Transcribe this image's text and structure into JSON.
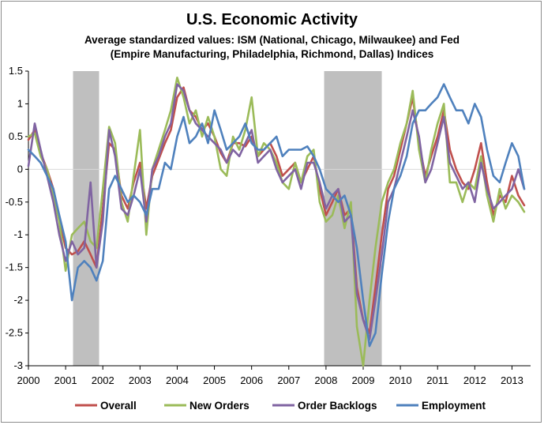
{
  "chart_data": {
    "type": "line",
    "title": "U.S. Economic Activity",
    "subtitle_line1": "Average standardized values: ISM (National, Chicago, Milwaukee) and Fed",
    "subtitle_line2": "(Empire Manufacturing, Philadelphia, Richmond, Dallas) Indices",
    "xlabel": "",
    "ylabel": "",
    "xlim": [
      2000,
      2013.5
    ],
    "ylim": [
      -3,
      1.5
    ],
    "x_ticks": [
      "2000",
      "2001",
      "2002",
      "2003",
      "2004",
      "2005",
      "2006",
      "2007",
      "2008",
      "2009",
      "2010",
      "2011",
      "2012",
      "2013"
    ],
    "y_ticks": [
      "1.5",
      "1",
      "0.5",
      "0",
      "-0.5",
      "-1",
      "-1.5",
      "-2",
      "-2.5",
      "-3"
    ],
    "recessions": [
      [
        2001.2,
        2001.9
      ],
      [
        2007.95,
        2009.5
      ]
    ],
    "recession_color": "#bfbfbf",
    "grid": "horizontal",
    "legend_position": "bottom",
    "series": [
      {
        "name": "Overall",
        "color": "#c0504d",
        "x": [
          2000.0,
          2000.17,
          2000.33,
          2000.5,
          2000.67,
          2000.83,
          2001.0,
          2001.17,
          2001.33,
          2001.5,
          2001.67,
          2001.83,
          2002.0,
          2002.17,
          2002.33,
          2002.5,
          2002.67,
          2002.83,
          2003.0,
          2003.17,
          2003.33,
          2003.5,
          2003.67,
          2003.83,
          2004.0,
          2004.17,
          2004.33,
          2004.5,
          2004.67,
          2004.83,
          2005.0,
          2005.17,
          2005.33,
          2005.5,
          2005.67,
          2005.83,
          2006.0,
          2006.17,
          2006.33,
          2006.5,
          2006.67,
          2006.83,
          2007.0,
          2007.17,
          2007.33,
          2007.5,
          2007.67,
          2007.83,
          2008.0,
          2008.17,
          2008.33,
          2008.5,
          2008.67,
          2008.83,
          2009.0,
          2009.17,
          2009.33,
          2009.5,
          2009.67,
          2009.83,
          2010.0,
          2010.17,
          2010.33,
          2010.5,
          2010.67,
          2010.83,
          2011.0,
          2011.17,
          2011.33,
          2011.5,
          2011.67,
          2011.83,
          2012.0,
          2012.17,
          2012.33,
          2012.5,
          2012.67,
          2012.83,
          2013.0,
          2013.17,
          2013.33
        ],
        "values": [
          0.45,
          0.6,
          0.25,
          0.0,
          -0.3,
          -0.75,
          -1.2,
          -1.3,
          -1.25,
          -1.1,
          -1.3,
          -1.5,
          -0.6,
          0.4,
          0.3,
          -0.4,
          -0.6,
          -0.2,
          0.1,
          -0.6,
          -0.1,
          0.15,
          0.4,
          0.6,
          1.1,
          1.25,
          0.9,
          0.8,
          0.6,
          0.7,
          0.5,
          0.25,
          0.1,
          0.4,
          0.4,
          0.35,
          0.5,
          0.2,
          0.3,
          0.4,
          0.2,
          -0.1,
          0.0,
          0.1,
          -0.2,
          0.0,
          0.2,
          -0.3,
          -0.7,
          -0.5,
          -0.3,
          -0.7,
          -0.6,
          -1.8,
          -2.3,
          -2.5,
          -1.8,
          -1.0,
          -0.3,
          -0.1,
          0.3,
          0.7,
          1.1,
          0.4,
          -0.1,
          0.2,
          0.5,
          0.9,
          0.3,
          0.0,
          -0.2,
          -0.3,
          0.0,
          0.4,
          -0.2,
          -0.7,
          -0.4,
          -0.5,
          -0.1,
          -0.4,
          -0.55
        ]
      },
      {
        "name": "New Orders",
        "color": "#9bbb59",
        "x": [
          2000.0,
          2000.17,
          2000.33,
          2000.5,
          2000.67,
          2000.83,
          2001.0,
          2001.17,
          2001.33,
          2001.5,
          2001.67,
          2001.83,
          2002.0,
          2002.17,
          2002.33,
          2002.5,
          2002.67,
          2002.83,
          2003.0,
          2003.17,
          2003.33,
          2003.5,
          2003.67,
          2003.83,
          2004.0,
          2004.17,
          2004.33,
          2004.5,
          2004.67,
          2004.83,
          2005.0,
          2005.17,
          2005.33,
          2005.5,
          2005.67,
          2005.83,
          2006.0,
          2006.17,
          2006.33,
          2006.5,
          2006.67,
          2006.83,
          2007.0,
          2007.17,
          2007.33,
          2007.5,
          2007.67,
          2007.83,
          2008.0,
          2008.17,
          2008.33,
          2008.5,
          2008.67,
          2008.83,
          2009.0,
          2009.17,
          2009.33,
          2009.5,
          2009.67,
          2009.83,
          2010.0,
          2010.17,
          2010.33,
          2010.5,
          2010.67,
          2010.83,
          2011.0,
          2011.17,
          2011.33,
          2011.5,
          2011.67,
          2011.83,
          2012.0,
          2012.17,
          2012.33,
          2012.5,
          2012.67,
          2012.83,
          2013.0,
          2013.17,
          2013.33
        ],
        "values": [
          0.5,
          0.55,
          0.2,
          0.0,
          -0.4,
          -0.8,
          -1.55,
          -1.0,
          -0.9,
          -0.8,
          -1.1,
          -1.2,
          -0.3,
          0.65,
          0.4,
          -0.5,
          -0.8,
          -0.1,
          0.6,
          -1.0,
          0.0,
          0.3,
          0.6,
          0.9,
          1.4,
          1.1,
          0.7,
          0.9,
          0.5,
          0.8,
          0.5,
          0.0,
          -0.1,
          0.5,
          0.3,
          0.6,
          1.1,
          0.2,
          0.4,
          0.3,
          0.1,
          -0.2,
          -0.3,
          0.1,
          -0.2,
          0.2,
          0.3,
          -0.5,
          -0.8,
          -0.7,
          -0.4,
          -0.9,
          -0.5,
          -2.4,
          -3.0,
          -2.0,
          -1.2,
          -0.5,
          -0.2,
          0.0,
          0.4,
          0.7,
          1.2,
          0.3,
          -0.2,
          0.3,
          0.7,
          1.0,
          -0.2,
          -0.2,
          -0.5,
          -0.2,
          -0.3,
          0.2,
          -0.4,
          -0.8,
          -0.3,
          -0.6,
          -0.4,
          -0.5,
          -0.65
        ]
      },
      {
        "name": "Order Backlogs",
        "color": "#8064a2",
        "x": [
          2000.0,
          2000.17,
          2000.33,
          2000.5,
          2000.67,
          2000.83,
          2001.0,
          2001.17,
          2001.33,
          2001.5,
          2001.67,
          2001.83,
          2002.0,
          2002.17,
          2002.33,
          2002.5,
          2002.67,
          2002.83,
          2003.0,
          2003.17,
          2003.33,
          2003.5,
          2003.67,
          2003.83,
          2004.0,
          2004.17,
          2004.33,
          2004.5,
          2004.67,
          2004.83,
          2005.0,
          2005.17,
          2005.33,
          2005.5,
          2005.67,
          2005.83,
          2006.0,
          2006.17,
          2006.33,
          2006.5,
          2006.67,
          2006.83,
          2007.0,
          2007.17,
          2007.33,
          2007.5,
          2007.67,
          2007.83,
          2008.0,
          2008.17,
          2008.33,
          2008.5,
          2008.67,
          2008.83,
          2009.0,
          2009.17,
          2009.33,
          2009.5,
          2009.67,
          2009.83,
          2010.0,
          2010.17,
          2010.33,
          2010.5,
          2010.67,
          2010.83,
          2011.0,
          2011.17,
          2011.33,
          2011.5,
          2011.67,
          2011.83,
          2012.0,
          2012.17,
          2012.33,
          2012.5,
          2012.67,
          2012.83,
          2013.0,
          2013.17,
          2013.33
        ],
        "values": [
          0.05,
          0.7,
          0.3,
          -0.1,
          -0.5,
          -1.0,
          -1.4,
          -1.1,
          -1.3,
          -1.2,
          -0.2,
          -1.5,
          -0.8,
          0.6,
          0.2,
          -0.6,
          -0.7,
          -0.4,
          0.0,
          -0.8,
          0.0,
          0.2,
          0.5,
          0.7,
          1.3,
          1.2,
          0.9,
          0.7,
          0.6,
          0.5,
          0.4,
          0.3,
          0.1,
          0.3,
          0.2,
          0.4,
          0.6,
          0.1,
          0.2,
          0.3,
          0.0,
          -0.2,
          -0.1,
          0.0,
          -0.3,
          0.1,
          0.1,
          -0.2,
          -0.6,
          -0.4,
          -0.3,
          -0.8,
          -0.7,
          -1.9,
          -2.3,
          -2.6,
          -2.0,
          -1.3,
          -0.5,
          -0.3,
          0.1,
          0.5,
          0.9,
          0.5,
          -0.2,
          0.0,
          0.4,
          0.8,
          0.1,
          -0.1,
          -0.3,
          -0.2,
          -0.5,
          0.1,
          -0.3,
          -0.6,
          -0.5,
          -0.4,
          -0.3,
          0.0,
          -0.3
        ]
      },
      {
        "name": "Employment",
        "color": "#4f81bd",
        "x": [
          2000.0,
          2000.17,
          2000.33,
          2000.5,
          2000.67,
          2000.83,
          2001.0,
          2001.17,
          2001.33,
          2001.5,
          2001.67,
          2001.83,
          2002.0,
          2002.17,
          2002.33,
          2002.5,
          2002.67,
          2002.83,
          2003.0,
          2003.17,
          2003.33,
          2003.5,
          2003.67,
          2003.83,
          2004.0,
          2004.17,
          2004.33,
          2004.5,
          2004.67,
          2004.83,
          2005.0,
          2005.17,
          2005.33,
          2005.5,
          2005.67,
          2005.83,
          2006.0,
          2006.17,
          2006.33,
          2006.5,
          2006.67,
          2006.83,
          2007.0,
          2007.17,
          2007.33,
          2007.5,
          2007.67,
          2007.83,
          2008.0,
          2008.17,
          2008.33,
          2008.5,
          2008.67,
          2008.83,
          2009.0,
          2009.17,
          2009.33,
          2009.5,
          2009.67,
          2009.83,
          2010.0,
          2010.17,
          2010.33,
          2010.5,
          2010.67,
          2010.83,
          2011.0,
          2011.17,
          2011.33,
          2011.5,
          2011.67,
          2011.83,
          2012.0,
          2012.17,
          2012.33,
          2012.5,
          2012.67,
          2012.83,
          2013.0,
          2013.17,
          2013.33
        ],
        "values": [
          0.3,
          0.2,
          0.1,
          -0.1,
          -0.3,
          -0.7,
          -1.1,
          -2.0,
          -1.5,
          -1.4,
          -1.5,
          -1.7,
          -1.4,
          -0.3,
          -0.1,
          -0.3,
          -0.5,
          -0.4,
          -0.5,
          -0.7,
          -0.3,
          -0.3,
          0.1,
          0.0,
          0.5,
          0.8,
          0.4,
          0.5,
          0.7,
          0.4,
          0.9,
          0.6,
          0.3,
          0.4,
          0.5,
          0.7,
          0.4,
          0.3,
          0.3,
          0.4,
          0.5,
          0.2,
          0.3,
          0.3,
          0.3,
          0.35,
          0.2,
          0.0,
          -0.3,
          -0.4,
          -0.5,
          -0.4,
          -0.7,
          -1.2,
          -2.0,
          -2.7,
          -2.5,
          -1.6,
          -0.8,
          -0.3,
          -0.1,
          0.2,
          0.7,
          0.9,
          0.9,
          1.0,
          1.1,
          1.3,
          1.1,
          0.9,
          0.9,
          0.7,
          1.0,
          0.8,
          0.3,
          -0.1,
          -0.2,
          0.1,
          0.4,
          0.2,
          -0.3
        ]
      }
    ]
  }
}
